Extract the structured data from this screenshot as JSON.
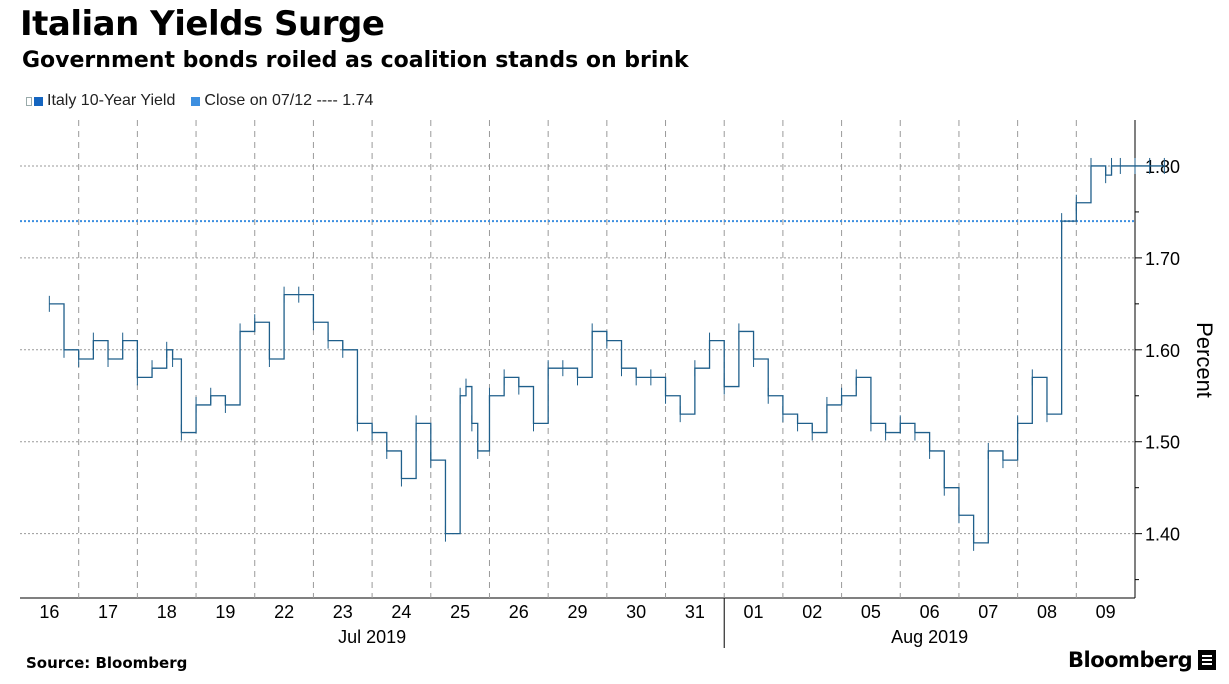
{
  "header": {
    "title": "Italian Yields Surge",
    "subtitle": "Government bonds roiled as coalition stands on brink"
  },
  "legend": {
    "series_label": "Italy 10-Year Yield",
    "close_label": "Close on 07/12 ---- 1.74"
  },
  "colors": {
    "series": "#1f5f8b",
    "close_line": "#3d8fe0",
    "legend_series": "#1565c0",
    "legend_close": "#3d8fe0",
    "grid": "#9a9a9a"
  },
  "footer": {
    "source": "Source: Bloomberg",
    "brand": "Bloomberg"
  },
  "chart_data": {
    "type": "line",
    "title": "Italian Yields Surge",
    "subtitle": "Government bonds roiled as coalition stands on brink",
    "ylabel": "Percent",
    "xlabel": "",
    "ylim": [
      1.33,
      1.85
    ],
    "yticks": [
      "1.40",
      "1.50",
      "1.60",
      "1.70",
      "1.80"
    ],
    "ytick_values": [
      1.4,
      1.5,
      1.6,
      1.7,
      1.8
    ],
    "categories": [
      "16",
      "17",
      "18",
      "19",
      "22",
      "23",
      "24",
      "25",
      "26",
      "29",
      "30",
      "31",
      "01",
      "02",
      "05",
      "06",
      "07",
      "08",
      "09"
    ],
    "month_labels": [
      {
        "label": "Jul 2019",
        "start": 0,
        "end": 11
      },
      {
        "label": "Aug 2019",
        "start": 12,
        "end": 18
      }
    ],
    "reference_line": {
      "label": "Close on 07/12",
      "value": 1.74
    },
    "series": [
      {
        "name": "Italy 10-Year Yield",
        "x": [
          0.0,
          0.25,
          0.5,
          0.75,
          1.0,
          1.25,
          1.5,
          1.75,
          2.0,
          2.1,
          2.25,
          2.5,
          2.75,
          3.0,
          3.25,
          3.5,
          3.75,
          4.0,
          4.25,
          4.5,
          4.75,
          5.0,
          5.25,
          5.5,
          5.75,
          6.0,
          6.25,
          6.5,
          6.75,
          7.0,
          7.1,
          7.2,
          7.3,
          7.5,
          7.75,
          8.0,
          8.25,
          8.5,
          8.75,
          9.0,
          9.25,
          9.5,
          9.75,
          10.0,
          10.25,
          10.5,
          10.75,
          11.0,
          11.25,
          11.5,
          11.75,
          12.0,
          12.25,
          12.5,
          12.75,
          13.0,
          13.25,
          13.5,
          13.75,
          14.0,
          14.25,
          14.5,
          14.75,
          15.0,
          15.25,
          15.5,
          15.75,
          16.0,
          16.25,
          16.5,
          16.75,
          17.0,
          17.25,
          17.5,
          17.75,
          18.0,
          18.1,
          18.25,
          18.5,
          18.75,
          19.0
        ],
        "values": [
          1.65,
          1.6,
          1.59,
          1.61,
          1.59,
          1.61,
          1.57,
          1.58,
          1.6,
          1.59,
          1.51,
          1.54,
          1.55,
          1.54,
          1.62,
          1.63,
          1.59,
          1.66,
          1.66,
          1.63,
          1.61,
          1.6,
          1.52,
          1.51,
          1.49,
          1.46,
          1.52,
          1.48,
          1.4,
          1.55,
          1.56,
          1.52,
          1.49,
          1.55,
          1.57,
          1.56,
          1.52,
          1.58,
          1.58,
          1.57,
          1.62,
          1.61,
          1.58,
          1.57,
          1.57,
          1.55,
          1.53,
          1.58,
          1.61,
          1.56,
          1.62,
          1.59,
          1.55,
          1.53,
          1.52,
          1.51,
          1.54,
          1.55,
          1.57,
          1.52,
          1.51,
          1.52,
          1.51,
          1.49,
          1.45,
          1.42,
          1.39,
          1.49,
          1.48,
          1.52,
          1.57,
          1.53,
          1.74,
          1.76,
          1.8,
          1.79,
          1.8,
          1.8,
          1.8,
          1.8,
          1.8
        ]
      }
    ]
  }
}
